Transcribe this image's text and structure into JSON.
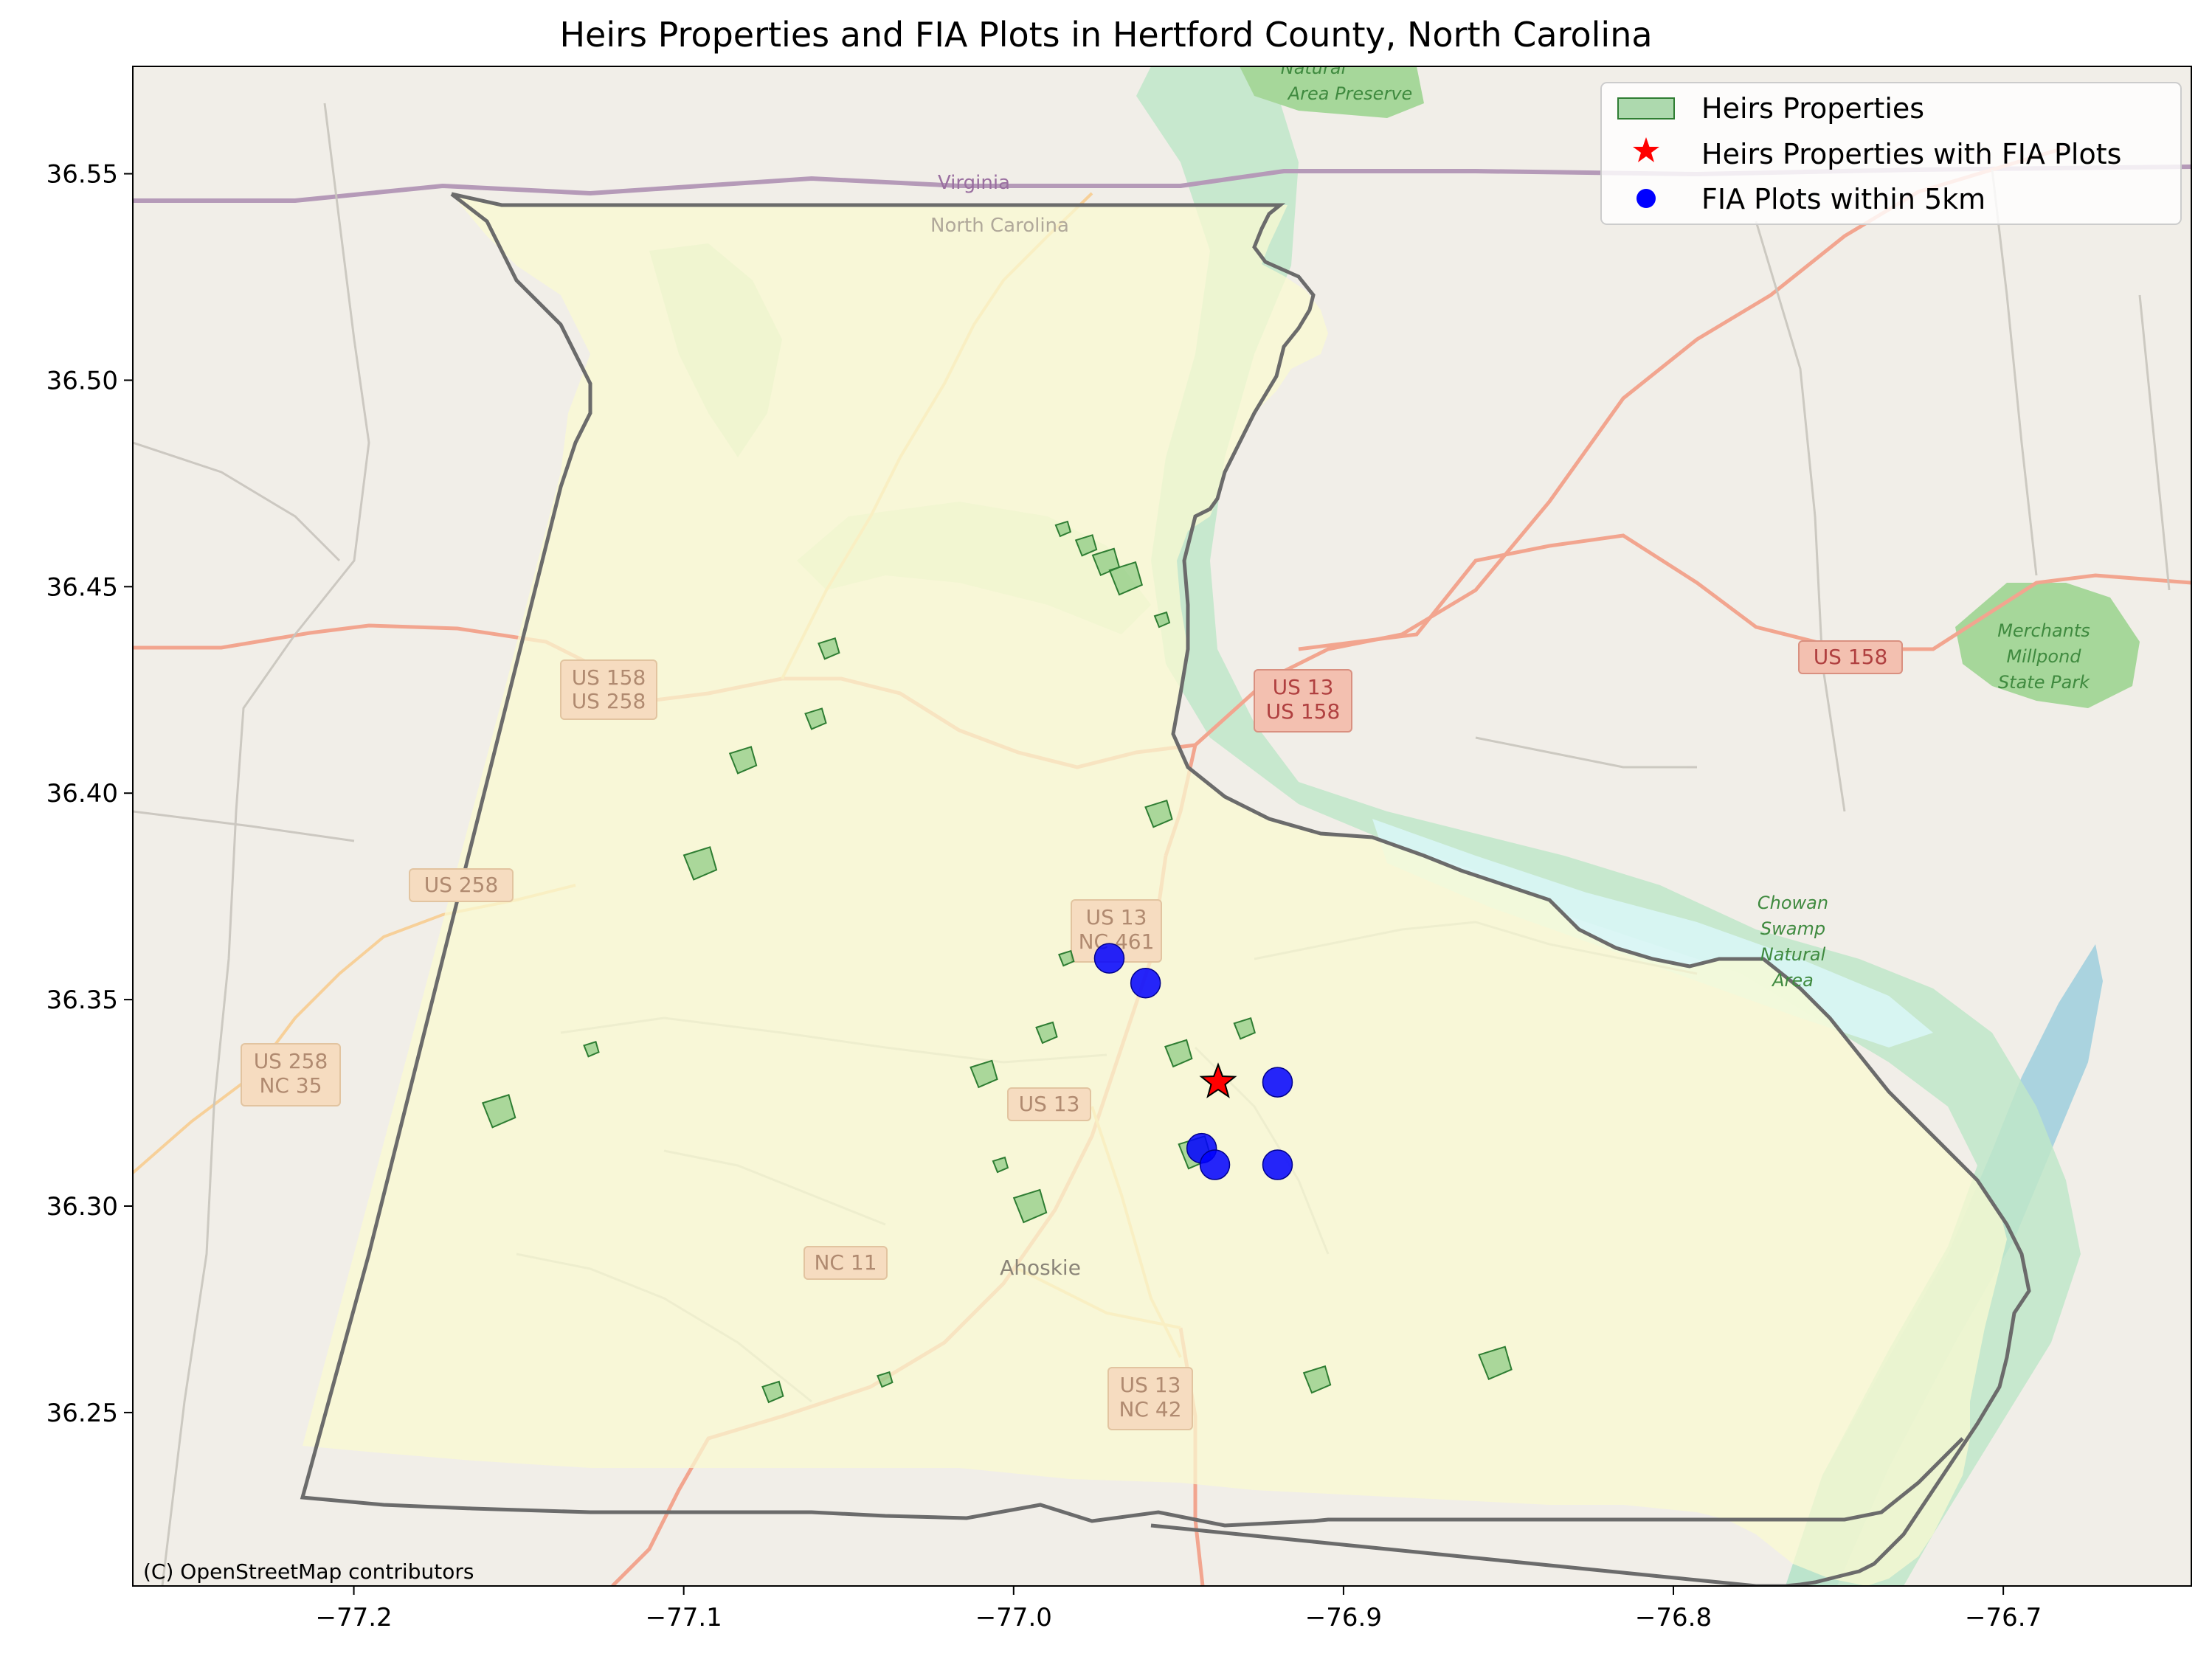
{
  "chart_data": {
    "type": "map",
    "title": "Heirs Properties and FIA Plots in Hertford County, North Carolina",
    "xlim": [
      -77.267,
      -76.643
    ],
    "ylim": [
      36.208,
      36.576
    ],
    "xticks": [
      -77.2,
      -77.1,
      -77.0,
      -76.9,
      -76.8,
      -76.7
    ],
    "xtick_labels": [
      "−77.2",
      "−77.1",
      "−77.0",
      "−76.9",
      "−76.8",
      "−76.7"
    ],
    "yticks": [
      36.25,
      36.3,
      36.35,
      36.4,
      36.45,
      36.5,
      36.55
    ],
    "ytick_labels": [
      "36.25",
      "36.30",
      "36.35",
      "36.40",
      "36.45",
      "36.50",
      "36.55"
    ],
    "legend": {
      "position": "top-right",
      "entries": [
        {
          "label": "Heirs Properties",
          "marker": "patch",
          "color": "#4caf50"
        },
        {
          "label": "Heirs Properties with FIA Plots",
          "marker": "star",
          "color": "#ff0000"
        },
        {
          "label": "FIA Plots within 5km",
          "marker": "circle",
          "color": "#0000ff"
        }
      ]
    },
    "heirs_property_with_fia": [
      {
        "lon": -76.938,
        "lat": 36.33
      }
    ],
    "fia_plots": [
      {
        "lon": -76.971,
        "lat": 36.36
      },
      {
        "lon": -76.96,
        "lat": 36.354
      },
      {
        "lon": -76.92,
        "lat": 36.33
      },
      {
        "lon": -76.943,
        "lat": 36.314
      },
      {
        "lon": -76.939,
        "lat": 36.31
      },
      {
        "lon": -76.92,
        "lat": 36.31
      }
    ],
    "heirs_properties": [
      {
        "lon": -76.985,
        "lat": 36.464
      },
      {
        "lon": -76.978,
        "lat": 36.46
      },
      {
        "lon": -76.972,
        "lat": 36.456
      },
      {
        "lon": -76.966,
        "lat": 36.452
      },
      {
        "lon": -76.955,
        "lat": 36.442
      },
      {
        "lon": -77.056,
        "lat": 36.435
      },
      {
        "lon": -76.956,
        "lat": 36.395
      },
      {
        "lon": -77.095,
        "lat": 36.383
      },
      {
        "lon": -76.984,
        "lat": 36.36
      },
      {
        "lon": -76.99,
        "lat": 36.342
      },
      {
        "lon": -77.009,
        "lat": 36.332
      },
      {
        "lon": -77.156,
        "lat": 36.323
      },
      {
        "lon": -77.128,
        "lat": 36.338
      },
      {
        "lon": -76.93,
        "lat": 36.343
      },
      {
        "lon": -76.95,
        "lat": 36.337
      },
      {
        "lon": -76.945,
        "lat": 36.313
      },
      {
        "lon": -77.039,
        "lat": 36.258
      },
      {
        "lon": -77.073,
        "lat": 36.255
      },
      {
        "lon": -76.908,
        "lat": 36.258
      },
      {
        "lon": -76.854,
        "lat": 36.262
      },
      {
        "lon": -77.004,
        "lat": 36.31
      },
      {
        "lon": -77.06,
        "lat": 36.418
      },
      {
        "lon": -77.082,
        "lat": 36.408
      },
      {
        "lon": -76.995,
        "lat": 36.3
      }
    ]
  },
  "basemap": {
    "attribution": "(C) OpenStreetMap contributors",
    "place_labels": {
      "virginia": "Virginia",
      "north_carolina": "North Carolina",
      "ahoskie": "Ahoskie",
      "area_preserve": "Area Preserve",
      "natural": "Natural"
    },
    "parks": {
      "merchants": [
        "Merchants",
        "Millpond",
        "State Park"
      ],
      "chowan": [
        "Chowan",
        "Swamp",
        "Natural",
        "Area"
      ]
    },
    "road_shields": {
      "us158_us258": [
        "US 158",
        "US 258"
      ],
      "us13_us158": [
        "US 13",
        "US 158"
      ],
      "us158_east": "US 158",
      "us258": "US 258",
      "us258_nc35": [
        "US 258",
        "NC 35"
      ],
      "us13_nc461": [
        "US 13",
        "NC 461"
      ],
      "us13": "US 13",
      "nc11": "NC 11",
      "us13_nc42": [
        "US 13",
        "NC 42"
      ]
    }
  }
}
